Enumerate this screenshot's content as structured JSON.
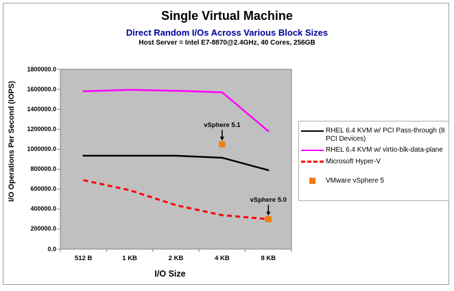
{
  "chart_data": {
    "type": "line",
    "title": "Single Virtual Machine",
    "subtitle": "Direct Random I/Os Across Various Block Sizes",
    "subtitle_color": "#000099",
    "caption": "Host Server = Intel E7-8870@2.4GHz, 40 Cores, 256GB",
    "categories": [
      "512 B",
      "1 KB",
      "2 KB",
      "4 KB",
      "8 KB"
    ],
    "series": [
      {
        "name": "RHEL 6.4 KVM w/ PCI Pass-through (8 PCI Devices)",
        "color": "#000000",
        "line_style": "solid",
        "marker": "none",
        "values": [
          935000,
          935000,
          935000,
          915000,
          790000
        ]
      },
      {
        "name": "RHEL 6.4 KVM w/ virtio-blk-data-plane",
        "color": "#FF00FF",
        "line_style": "solid",
        "marker": "none",
        "values": [
          1580000,
          1595000,
          1585000,
          1570000,
          1180000
        ]
      },
      {
        "name": "Microsoft Hyper-V",
        "color": "#FF0000",
        "line_style": "dashed",
        "marker": "none",
        "values": [
          690000,
          590000,
          440000,
          340000,
          300000
        ]
      },
      {
        "name": "VMware vSphere 5",
        "color": "#F07C12",
        "line_style": "none",
        "marker": "square",
        "values": [
          null,
          null,
          null,
          1050000,
          300000
        ]
      }
    ],
    "annotations": [
      {
        "label": "vSphere 5.1",
        "category_index": 3,
        "value": 1050000
      },
      {
        "label": "vSphere 5.0",
        "category_index": 4,
        "value": 300000
      }
    ],
    "xlabel": "I/O Size",
    "ylabel": "I/O Operations Per Second (IOPS)",
    "ylim": [
      0,
      1800000
    ],
    "ytick_step": 200000,
    "ytick_format": "one-decimal-no-separator",
    "plot_background": "#C0C0C0",
    "axis_color": "#808080",
    "grid": false,
    "legend_position": "right"
  }
}
